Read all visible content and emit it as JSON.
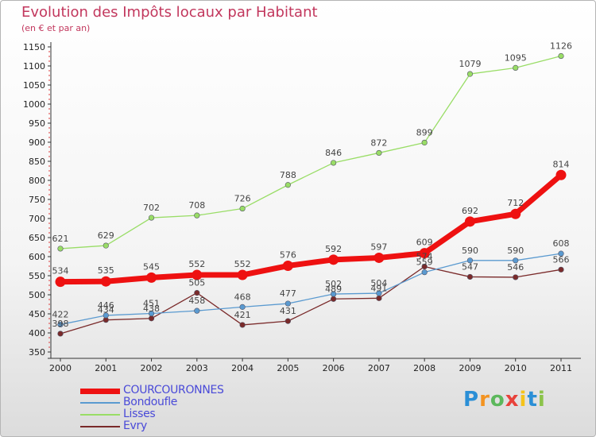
{
  "header": {
    "title": "Evolution des Impôts locaux par Habitant",
    "subtitle": "(en € et par an)"
  },
  "logo": {
    "letters": [
      "P",
      "r",
      "o",
      "x",
      "i",
      "t",
      "i"
    ],
    "colors": [
      "#2b8fd6",
      "#f39321",
      "#5cb85c",
      "#e8423b",
      "#f5c31a",
      "#2b8fd6",
      "#8bc34a"
    ]
  },
  "chart_data": {
    "type": "line",
    "x": [
      "2000",
      "2001",
      "2002",
      "2003",
      "2004",
      "2005",
      "2006",
      "2007",
      "2008",
      "2009",
      "2010",
      "2011"
    ],
    "y_ticks": [
      "350",
      "400",
      "450",
      "500",
      "550",
      "600",
      "650",
      "700",
      "750",
      "800",
      "850",
      "900",
      "950",
      "1000",
      "1050",
      "1100",
      "1150"
    ],
    "ylim": [
      350,
      1150
    ],
    "grid": false,
    "legend_position": "bottom-left",
    "series": [
      {
        "name": "COURCOURONNES",
        "color": "#ee1111",
        "values": [
          534,
          535,
          545,
          552,
          552,
          576,
          592,
          597,
          609,
          692,
          712,
          814
        ],
        "labels": [
          "534",
          "535",
          "545",
          "552",
          "552",
          "576",
          "592",
          "597",
          "609",
          "692",
          "712",
          "814"
        ]
      },
      {
        "name": "Bondoufle",
        "color": "#5a9ad0",
        "values": [
          422,
          446,
          451,
          458,
          468,
          477,
          502,
          504,
          559,
          590,
          590,
          608
        ],
        "labels": [
          "422",
          "446",
          "451",
          "458",
          "468",
          "477",
          "502",
          "504",
          "559",
          "590",
          "590",
          "608"
        ]
      },
      {
        "name": "Lisses",
        "color": "#99dd66",
        "values": [
          621,
          629,
          702,
          708,
          726,
          788,
          846,
          872,
          899,
          1079,
          1095,
          1126
        ],
        "labels": [
          "621",
          "629",
          "702",
          "708",
          "726",
          "788",
          "846",
          "872",
          "899",
          "1079",
          "1095",
          "1126"
        ]
      },
      {
        "name": "Evry",
        "color": "#7a2a2a",
        "values": [
          398,
          434,
          438,
          505,
          421,
          431,
          489,
          491,
          574,
          547,
          546,
          566
        ],
        "labels": [
          "398",
          "434",
          "438",
          "505",
          "421",
          "431",
          "489",
          "491",
          "574",
          "547",
          "546",
          "566"
        ]
      }
    ]
  }
}
